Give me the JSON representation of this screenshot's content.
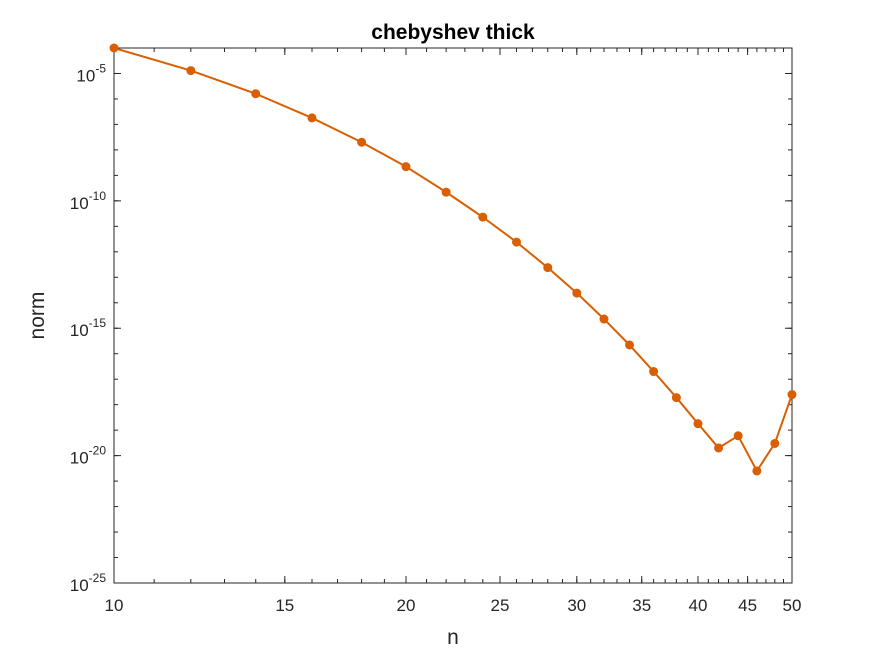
{
  "colors": {
    "series": "#D95F02",
    "axis": "#262626",
    "background": "#ffffff"
  },
  "chart_data": {
    "type": "line",
    "title": "chebyshev thick",
    "xlabel": "n",
    "ylabel": "norm",
    "xscale": "log",
    "yscale": "log",
    "xlim": [
      10,
      50
    ],
    "ylim": [
      1e-25,
      0.0001
    ],
    "grid": false,
    "legend": "none",
    "x_ticks": [
      {
        "value": 10,
        "label": "10"
      },
      {
        "value": 15,
        "label": "15"
      },
      {
        "value": 20,
        "label": "20"
      },
      {
        "value": 25,
        "label": "25"
      },
      {
        "value": 30,
        "label": "30"
      },
      {
        "value": 35,
        "label": "35"
      },
      {
        "value": 40,
        "label": "40"
      },
      {
        "value": 45,
        "label": "45"
      },
      {
        "value": 50,
        "label": "50"
      }
    ],
    "y_ticks": [
      {
        "value": 1e-25,
        "base": "10",
        "exp": "-25"
      },
      {
        "value": 1e-20,
        "base": "10",
        "exp": "-20"
      },
      {
        "value": 1e-15,
        "base": "10",
        "exp": "-15"
      },
      {
        "value": 1e-10,
        "base": "10",
        "exp": "-10"
      },
      {
        "value": 1e-05,
        "base": "10",
        "exp": "-5"
      }
    ],
    "series": [
      {
        "marker": "circle",
        "x": [
          10,
          12,
          14,
          16,
          18,
          20,
          22,
          24,
          26,
          28,
          30,
          32,
          34,
          36,
          38,
          40,
          42,
          44,
          46,
          48,
          50
        ],
        "y": [
          0.0001,
          1.3e-05,
          1.6e-06,
          1.8e-07,
          2e-08,
          2.2e-09,
          2.2e-10,
          2.3e-11,
          2.4e-12,
          2.4e-13,
          2.4e-14,
          2.3e-15,
          2.2e-16,
          2e-17,
          1.9e-18,
          1.8e-19,
          2e-20,
          6e-20,
          2.5e-21,
          3e-20,
          2.5e-18
        ]
      }
    ]
  }
}
